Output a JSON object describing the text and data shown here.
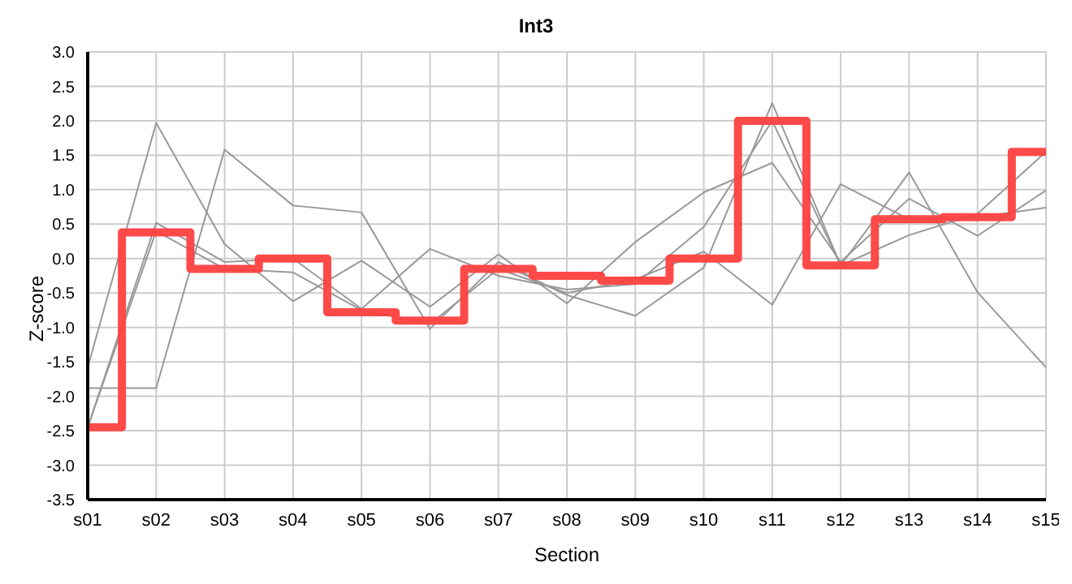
{
  "chart_data": {
    "type": "line",
    "title": "Int3",
    "xlabel": "Section",
    "ylabel": "Z-score",
    "categories": [
      "s01",
      "s02",
      "s03",
      "s04",
      "s05",
      "s06",
      "s07",
      "s08",
      "s09",
      "s10",
      "s11",
      "s12",
      "s13",
      "s14",
      "s15"
    ],
    "series": [
      {
        "color": "#999999",
        "values": [
          -1.88,
          -1.88,
          1.58,
          0.77,
          0.67,
          -1.02,
          -0.05,
          -0.53,
          -0.83,
          -0.13,
          2.26,
          -0.1,
          0.34,
          0.65,
          1.55
        ]
      },
      {
        "color": "#999999",
        "values": [
          -1.58,
          1.97,
          0.21,
          -0.62,
          -0.03,
          -0.7,
          0.06,
          -0.65,
          0.24,
          0.96,
          1.39,
          -0.05,
          0.87,
          0.33,
          0.99
        ]
      },
      {
        "color": "#999999",
        "values": [
          -2.45,
          0.52,
          -0.05,
          0.0,
          -0.73,
          0.14,
          -0.25,
          -0.45,
          -0.37,
          0.46,
          2.0,
          -0.1,
          1.25,
          -0.49,
          -1.58
        ]
      },
      {
        "color": "#999999",
        "values": [
          -2.45,
          0.4,
          -0.15,
          -0.2,
          -0.75,
          -0.95,
          -0.15,
          -0.5,
          -0.3,
          0.1,
          -0.67,
          1.08,
          0.57,
          0.6,
          0.74
        ]
      },
      {
        "type": "step",
        "color": "#ff4040",
        "values": [
          -2.45,
          0.38,
          -0.15,
          0.0,
          -0.78,
          -0.9,
          -0.15,
          -0.25,
          -0.32,
          0.0,
          2.0,
          -0.1,
          0.57,
          0.6,
          1.55
        ]
      }
    ],
    "ylim": [
      -3.5,
      3.0
    ],
    "yticks": [
      {
        "value": -3.5,
        "label": "-3.5"
      },
      {
        "value": -3,
        "label": "-3.0"
      },
      {
        "value": -2.5,
        "label": "-2.5"
      },
      {
        "value": -2,
        "label": "-2.0"
      },
      {
        "value": -1.5,
        "label": "-1.5"
      },
      {
        "value": -1,
        "label": "-1.0"
      },
      {
        "value": -0.5,
        "label": "-0.5"
      },
      {
        "value": 0,
        "label": "0.0"
      },
      {
        "value": 0.5,
        "label": "0.5"
      },
      {
        "value": 1,
        "label": "1.0"
      },
      {
        "value": 1.5,
        "label": "1.5"
      },
      {
        "value": 2,
        "label": "2.0"
      },
      {
        "value": 2.5,
        "label": "2.5"
      },
      {
        "value": 3,
        "label": "3.0"
      }
    ],
    "grid": true,
    "marker": "none",
    "line_style": "solid"
  }
}
